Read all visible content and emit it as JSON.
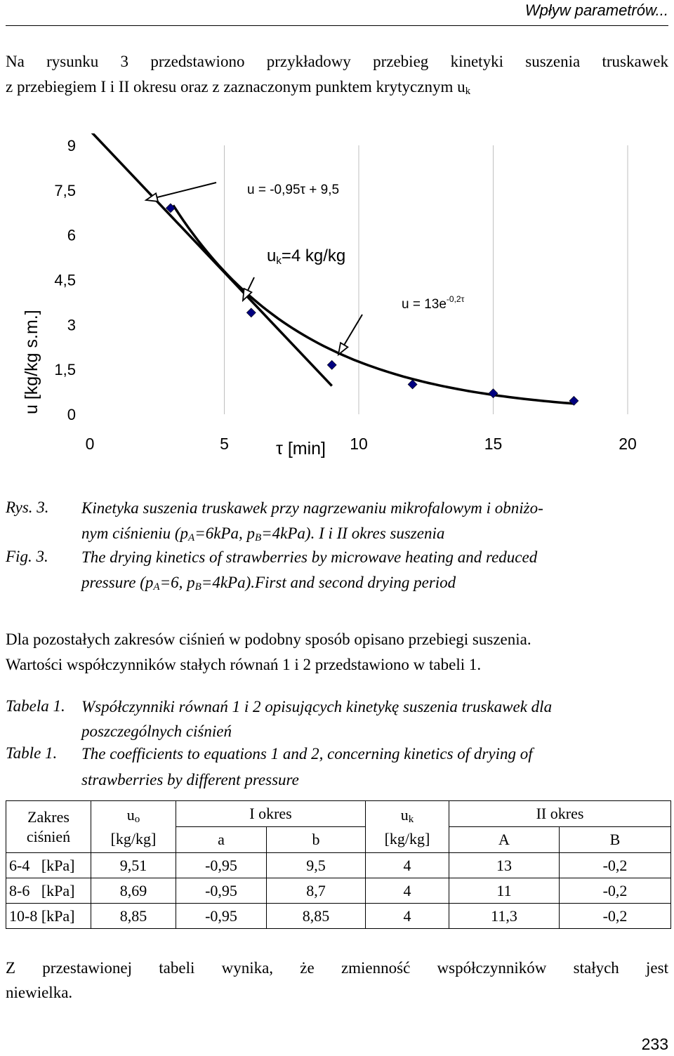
{
  "header": {
    "title": "Wpływ parametrów..."
  },
  "intro": {
    "line1": "Na rysunku 3 przedstawiono przykładowy przebieg kinetyki suszenia truskawek",
    "line2": "z przebiegiem I i II okresu oraz z zaznaczonym punktem krytycznym u",
    "line2_sub": "k"
  },
  "chart_data": {
    "type": "scatter",
    "ylabel": "u [kg/kg s.m.]",
    "xlabel": "τ [min]",
    "xlim": [
      0,
      20
    ],
    "ylim": [
      0,
      9
    ],
    "x_ticks": [
      "0",
      "5",
      "10",
      "15",
      "20"
    ],
    "y_ticks": [
      "0",
      "1,5",
      "3",
      "4,5",
      "6",
      "7,5",
      "9"
    ],
    "grid": "vertical",
    "points": [
      {
        "x": 3,
        "y": 6.9
      },
      {
        "x": 6,
        "y": 3.4
      },
      {
        "x": 9,
        "y": 1.65
      },
      {
        "x": 12,
        "y": 1.0
      },
      {
        "x": 15,
        "y": 0.7
      },
      {
        "x": 18,
        "y": 0.45
      }
    ],
    "series": [
      {
        "type": "line",
        "equation": "u = -0,95τ + 9,5",
        "x": [
          0,
          9
        ],
        "y": [
          9.5,
          0.95
        ]
      },
      {
        "type": "exponential",
        "equation": "u = 13e-0,2τ",
        "A": 13,
        "B": -0.2,
        "x_range": [
          3.1,
          18
        ]
      }
    ],
    "annotations": {
      "line_eq": "u = -0,95τ + 9,5",
      "uk": "u",
      "uk_sub": "k",
      "uk_rest": "=4 kg/kg",
      "exp_eq_base": "u = 13e",
      "exp_eq_sup": "-0,2τ"
    },
    "colors": {
      "marker": "#000080",
      "line": "#000000",
      "grid": "#bfbfbf"
    }
  },
  "caption": {
    "pl_label": "Rys. 3.",
    "pl_text_line1": "Kinetyka suszenia truskawek przy nagrzewaniu mikrofalowym i obniżo-",
    "pl_text_line2a": "nym ciśnieniu (p",
    "pl_sub_a": "A",
    "pl_text_line2b": "=6kPa, p",
    "pl_sub_b": "B",
    "pl_text_line2c": "=4kPa). I i II okres suszenia",
    "en_label": "Fig. 3.",
    "en_text_line1": "The drying kinetics of strawberries by microwave heating and reduced",
    "en_text_line2a": "pressure (p",
    "en_sub_a": "A",
    "en_text_line2b": "=6, p",
    "en_sub_b": "B",
    "en_text_line2c": "=4kPa).First and second drying period"
  },
  "para2": {
    "line1": "Dla pozostałych zakresów ciśnień w podobny sposób opisano przebiegi suszenia.",
    "line2": "Wartości współczynników stałych równań 1 i 2 przedstawiono w tabeli 1."
  },
  "table_caption": {
    "pl_label": "Tabela 1.",
    "pl_line1": "Współczynniki równań 1 i 2 opisujących kinetykę suszenia truskawek dla",
    "pl_line2": "poszczególnych ciśnień",
    "en_label": "Table 1.",
    "en_line1": "The coefficients to equations 1 and 2, concerning kinetics of drying of",
    "en_line2": "strawberries by different pressure"
  },
  "table": {
    "h_zakres_1": "Zakres",
    "h_zakres_2": "ciśnień",
    "h_uo": "u",
    "h_uo_sub": "o",
    "h_uo_unit": "[kg/kg]",
    "h_okres1": "I okres",
    "h_uk": "u",
    "h_uk_sub": "k",
    "h_uk_unit": "[kg/kg]",
    "h_okres2": "II okres",
    "h_a": "a",
    "h_b": "b",
    "h_A": "A",
    "h_B": "B",
    "rows": [
      [
        "6-4   [kPa]",
        "9,51",
        "-0,95",
        "9,5",
        "4",
        "13",
        "-0,2"
      ],
      [
        "8-6   [kPa]",
        "8,69",
        "-0,95",
        "8,7",
        "4",
        "11",
        "-0,2"
      ],
      [
        "10-8 [kPa]",
        "8,85",
        "-0,95",
        "8,85",
        "4",
        "11,3",
        "-0,2"
      ]
    ]
  },
  "conclusion": {
    "line1": "Z przestawionej tabeli wynika, że zmienność współczynników stałych jest",
    "line2": "niewielka."
  },
  "page_number": "233"
}
